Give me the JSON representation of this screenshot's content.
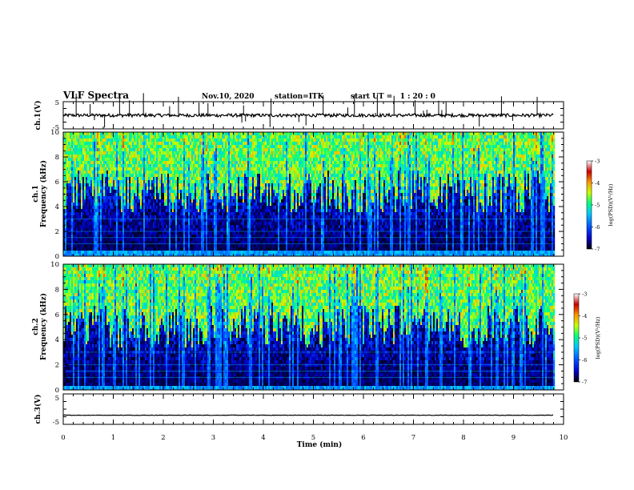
{
  "header": {
    "title": "VLF Spectra",
    "date": "Nov.10, 2020",
    "station": "station=ITK",
    "start": "start UT =   1 : 20 : 0"
  },
  "colors": {
    "background": "#ffffff",
    "axes": "#000000",
    "colormap": [
      "#000000",
      "#0000c8",
      "#0050ff",
      "#00c8ff",
      "#00ff80",
      "#c8ff00",
      "#ff9600",
      "#c80000",
      "#ffffff"
    ]
  },
  "chart_data": [
    {
      "type": "line",
      "name": "waveform-ch1",
      "ylabel": "ch.1(V)",
      "ylim": [
        -5,
        5
      ],
      "y_ticks": [
        "5",
        "-5"
      ],
      "baseline": 0,
      "x_range_min": [
        0,
        9.8
      ]
    },
    {
      "type": "heatmap",
      "name": "spectrogram-ch1",
      "ylabel": "ch.1\nFrequency (kHz)",
      "ylim": [
        0,
        10
      ],
      "y_ticks": [
        "0",
        "2",
        "4",
        "6",
        "8",
        "10"
      ],
      "x_range_min": [
        0,
        9.8
      ],
      "colorbar": {
        "label": "log(PSD)(V²/Hz)",
        "range": [
          -7,
          -3
        ],
        "ticks": [
          "-3",
          "-4",
          "-5",
          "-6",
          "-7"
        ]
      }
    },
    {
      "type": "heatmap",
      "name": "spectrogram-ch2",
      "ylabel": "ch.2\nFrequency (kHz)",
      "ylim": [
        0,
        10
      ],
      "y_ticks": [
        "0",
        "2",
        "4",
        "6",
        "8",
        "10"
      ],
      "x_range_min": [
        0,
        9.8
      ],
      "colorbar": {
        "label": "log(PSD)(V²/Hz)",
        "range": [
          -7,
          -3
        ],
        "ticks": [
          "-3",
          "-4",
          "-5",
          "-6",
          "-7"
        ]
      }
    },
    {
      "type": "line",
      "name": "waveform-ch3",
      "ylabel": "ch.3(V)",
      "ylim": [
        -5,
        5
      ],
      "y_ticks": [
        "5",
        "-5"
      ],
      "baseline": -2,
      "x_range_min": [
        0,
        9.8
      ]
    }
  ],
  "x_axis": {
    "label": "Time (min)",
    "range": [
      0,
      10
    ],
    "ticks": [
      "0",
      "1",
      "2",
      "3",
      "4",
      "5",
      "6",
      "7",
      "8",
      "9",
      "10"
    ]
  }
}
